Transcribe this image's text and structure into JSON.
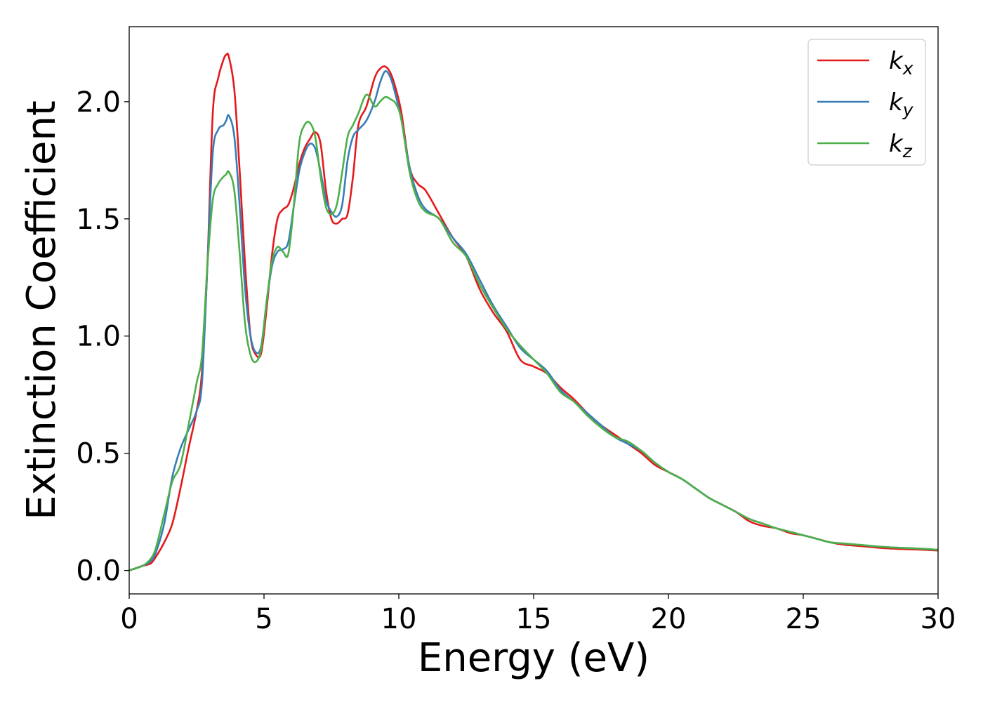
{
  "chart_data": {
    "type": "line",
    "xlabel": "Energy (eV)",
    "ylabel": "Extinction Coefficient",
    "xlim": [
      0,
      30
    ],
    "ylim": [
      -0.1,
      2.32
    ],
    "xticks": [
      0,
      5,
      10,
      15,
      20,
      25,
      30
    ],
    "yticks": [
      0.0,
      0.5,
      1.0,
      1.5,
      2.0
    ],
    "xtick_labels": [
      "0",
      "5",
      "10",
      "15",
      "20",
      "25",
      "30"
    ],
    "ytick_labels": [
      "0.0",
      "0.5",
      "1.0",
      "1.5",
      "2.0"
    ],
    "grid": false,
    "legend": "top-right",
    "series": [
      {
        "name": "k",
        "subscript": "x",
        "color": "#e41a1c",
        "x": [
          0,
          0.5,
          0.8,
          1.0,
          1.3,
          1.6,
          1.9,
          2.2,
          2.5,
          2.7,
          2.9,
          3.1,
          3.3,
          3.5,
          3.6,
          3.7,
          3.9,
          4.1,
          4.3,
          4.5,
          4.7,
          4.9,
          5.1,
          5.3,
          5.5,
          5.7,
          5.9,
          6.1,
          6.3,
          6.5,
          6.7,
          6.9,
          7.1,
          7.3,
          7.5,
          7.7,
          7.9,
          8.1,
          8.3,
          8.5,
          8.8,
          9.1,
          9.3,
          9.5,
          9.7,
          9.9,
          10.1,
          10.4,
          10.7,
          11.0,
          11.5,
          12.0,
          12.5,
          13.0,
          13.5,
          14.0,
          14.5,
          15.0,
          15.5,
          16.0,
          16.5,
          17.0,
          17.5,
          18.0,
          18.5,
          19.0,
          19.5,
          20.0,
          20.5,
          21.0,
          21.5,
          22.0,
          22.5,
          23.0,
          23.5,
          24.0,
          24.5,
          25.0,
          25.5,
          26.0,
          26.5,
          27.0,
          27.5,
          28.0,
          28.5,
          29.0,
          29.5,
          30.0
        ],
        "y": [
          0.0,
          0.02,
          0.03,
          0.06,
          0.12,
          0.2,
          0.35,
          0.52,
          0.68,
          0.85,
          1.3,
          1.95,
          2.1,
          2.18,
          2.2,
          2.19,
          2.05,
          1.7,
          1.3,
          1.0,
          0.92,
          0.93,
          1.12,
          1.35,
          1.5,
          1.54,
          1.56,
          1.63,
          1.73,
          1.8,
          1.84,
          1.87,
          1.82,
          1.62,
          1.5,
          1.48,
          1.5,
          1.52,
          1.68,
          1.9,
          1.98,
          2.1,
          2.14,
          2.15,
          2.12,
          2.05,
          1.95,
          1.72,
          1.65,
          1.62,
          1.52,
          1.42,
          1.34,
          1.2,
          1.1,
          1.02,
          0.9,
          0.87,
          0.84,
          0.78,
          0.73,
          0.67,
          0.62,
          0.58,
          0.54,
          0.5,
          0.45,
          0.42,
          0.39,
          0.35,
          0.31,
          0.28,
          0.25,
          0.21,
          0.19,
          0.18,
          0.16,
          0.15,
          0.135,
          0.12,
          0.11,
          0.105,
          0.1,
          0.095,
          0.092,
          0.09,
          0.088,
          0.085
        ]
      },
      {
        "name": "k",
        "subscript": "y",
        "color": "#377eb8",
        "x": [
          0,
          0.5,
          0.8,
          1.0,
          1.3,
          1.6,
          1.9,
          2.2,
          2.5,
          2.7,
          2.9,
          3.1,
          3.3,
          3.5,
          3.6,
          3.7,
          3.9,
          4.1,
          4.3,
          4.5,
          4.7,
          4.9,
          5.1,
          5.3,
          5.5,
          5.7,
          5.9,
          6.1,
          6.3,
          6.5,
          6.7,
          6.9,
          7.1,
          7.3,
          7.5,
          7.7,
          7.9,
          8.1,
          8.3,
          8.5,
          8.8,
          9.1,
          9.3,
          9.5,
          9.7,
          9.9,
          10.1,
          10.4,
          10.7,
          11.0,
          11.5,
          12.0,
          12.5,
          13.0,
          13.5,
          14.0,
          14.5,
          15.0,
          15.5,
          16.0,
          16.5,
          17.0,
          17.5,
          18.0,
          18.5,
          19.0,
          19.5,
          20.0,
          20.5,
          21.0,
          21.5,
          22.0,
          22.5,
          23.0,
          23.5,
          24.0,
          24.5,
          25.0,
          25.5,
          26.0,
          26.5,
          27.0,
          27.5,
          28.0,
          28.5,
          29.0,
          29.5,
          30.0
        ],
        "y": [
          0.0,
          0.02,
          0.04,
          0.08,
          0.2,
          0.4,
          0.52,
          0.6,
          0.68,
          0.8,
          1.3,
          1.78,
          1.88,
          1.9,
          1.92,
          1.94,
          1.85,
          1.55,
          1.2,
          1.0,
          0.93,
          0.96,
          1.15,
          1.3,
          1.36,
          1.37,
          1.4,
          1.55,
          1.7,
          1.78,
          1.82,
          1.8,
          1.7,
          1.58,
          1.53,
          1.51,
          1.56,
          1.75,
          1.85,
          1.88,
          1.92,
          2.0,
          2.08,
          2.13,
          2.1,
          2.02,
          1.92,
          1.72,
          1.6,
          1.54,
          1.5,
          1.42,
          1.35,
          1.24,
          1.13,
          1.04,
          0.95,
          0.9,
          0.85,
          0.77,
          0.72,
          0.67,
          0.62,
          0.57,
          0.54,
          0.51,
          0.46,
          0.42,
          0.39,
          0.35,
          0.31,
          0.28,
          0.25,
          0.22,
          0.2,
          0.18,
          0.165,
          0.15,
          0.135,
          0.12,
          0.115,
          0.11,
          0.105,
          0.1,
          0.097,
          0.095,
          0.092,
          0.088
        ]
      },
      {
        "name": "k",
        "subscript": "z",
        "color": "#4daf4a",
        "x": [
          0,
          0.5,
          0.8,
          1.0,
          1.3,
          1.6,
          1.9,
          2.2,
          2.5,
          2.7,
          2.9,
          3.1,
          3.3,
          3.5,
          3.6,
          3.7,
          3.9,
          4.1,
          4.3,
          4.5,
          4.7,
          4.9,
          5.1,
          5.3,
          5.5,
          5.7,
          5.9,
          6.1,
          6.3,
          6.5,
          6.7,
          6.9,
          7.1,
          7.3,
          7.5,
          7.7,
          7.9,
          8.1,
          8.3,
          8.5,
          8.8,
          9.1,
          9.3,
          9.5,
          9.7,
          9.9,
          10.1,
          10.4,
          10.7,
          11.0,
          11.5,
          12.0,
          12.5,
          13.0,
          13.5,
          14.0,
          14.5,
          15.0,
          15.5,
          16.0,
          16.5,
          17.0,
          17.5,
          18.0,
          18.5,
          19.0,
          19.5,
          20.0,
          20.5,
          21.0,
          21.5,
          22.0,
          22.5,
          23.0,
          23.5,
          24.0,
          24.5,
          25.0,
          25.5,
          26.0,
          26.5,
          27.0,
          27.5,
          28.0,
          28.5,
          29.0,
          29.5,
          30.0
        ],
        "y": [
          0.0,
          0.02,
          0.05,
          0.1,
          0.24,
          0.38,
          0.45,
          0.62,
          0.8,
          0.92,
          1.3,
          1.58,
          1.65,
          1.68,
          1.69,
          1.7,
          1.62,
          1.35,
          1.05,
          0.92,
          0.89,
          0.95,
          1.15,
          1.32,
          1.38,
          1.36,
          1.35,
          1.55,
          1.82,
          1.9,
          1.91,
          1.85,
          1.68,
          1.55,
          1.52,
          1.56,
          1.7,
          1.85,
          1.9,
          1.95,
          2.03,
          1.98,
          2.0,
          2.02,
          2.01,
          1.99,
          1.92,
          1.7,
          1.58,
          1.53,
          1.5,
          1.4,
          1.34,
          1.22,
          1.12,
          1.03,
          0.96,
          0.9,
          0.84,
          0.76,
          0.72,
          0.66,
          0.61,
          0.57,
          0.55,
          0.51,
          0.46,
          0.42,
          0.39,
          0.35,
          0.31,
          0.28,
          0.25,
          0.22,
          0.2,
          0.18,
          0.165,
          0.15,
          0.135,
          0.12,
          0.115,
          0.11,
          0.105,
          0.1,
          0.097,
          0.095,
          0.092,
          0.088
        ]
      }
    ]
  }
}
